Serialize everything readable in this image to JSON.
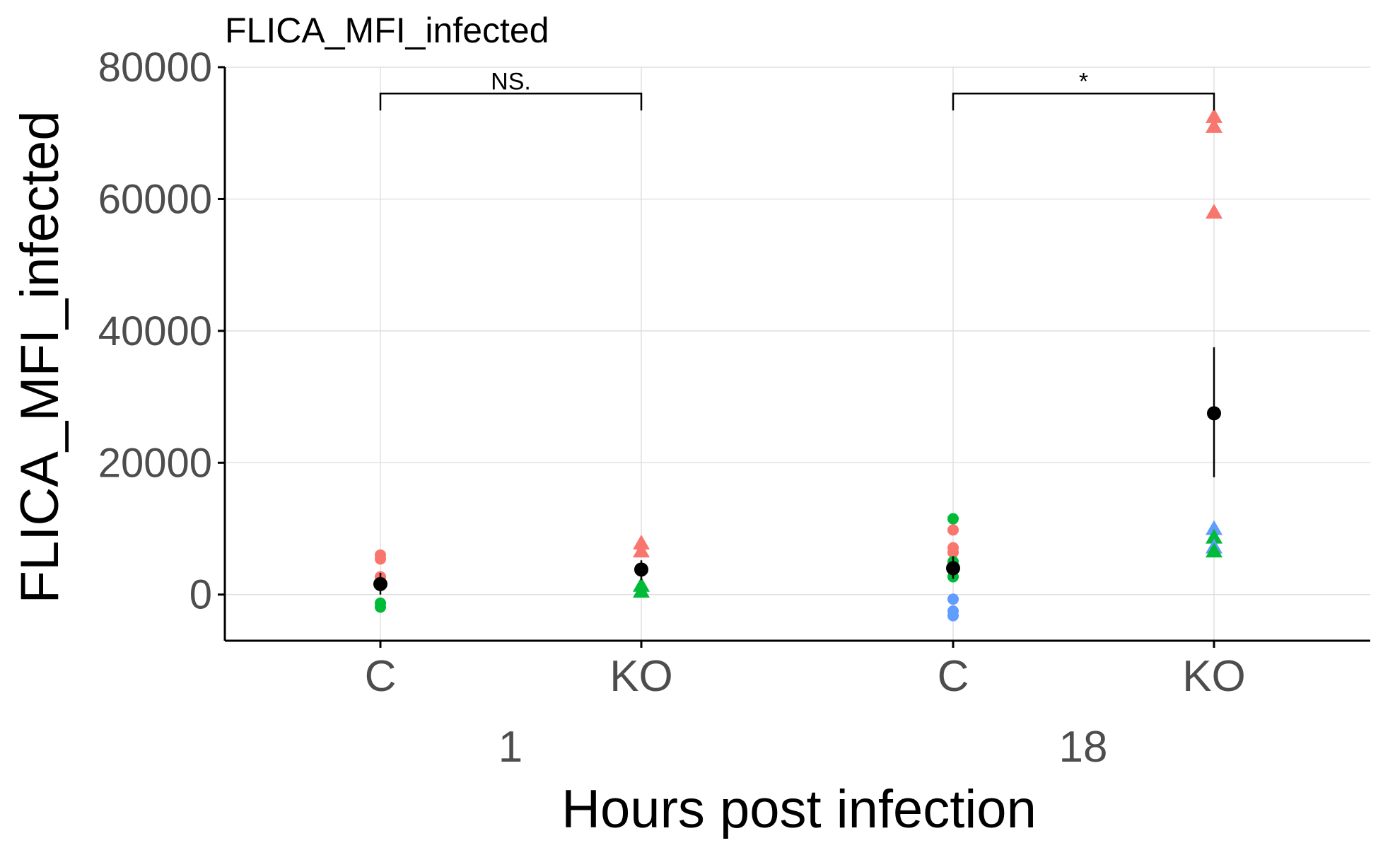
{
  "chart_data": {
    "type": "scatter",
    "title": "FLICA_MFI_infected",
    "xlabel": "Hours post infection",
    "ylabel": "FLICA_MFI_infected",
    "ylim": [
      -7000,
      80000
    ],
    "yticks": [
      "0",
      "20000",
      "40000",
      "60000",
      "80000"
    ],
    "ytick_values": [
      0,
      20000,
      40000,
      60000,
      80000
    ],
    "grid": true,
    "legend": "none",
    "groups": [
      {
        "label": "1",
        "categories": [
          "C",
          "KO"
        ]
      },
      {
        "label": "18",
        "categories": [
          "C",
          "KO"
        ]
      }
    ],
    "colors": {
      "red": "#F8766D",
      "green": "#00BA38",
      "blue": "#619CFF",
      "mean": "#000000"
    },
    "points": [
      {
        "group": "1",
        "category": "C",
        "shape": "circle",
        "color": "red",
        "y": 6000
      },
      {
        "group": "1",
        "category": "C",
        "shape": "circle",
        "color": "red",
        "y": 5400
      },
      {
        "group": "1",
        "category": "C",
        "shape": "circle",
        "color": "red",
        "y": 2700
      },
      {
        "group": "1",
        "category": "C",
        "shape": "circle",
        "color": "green",
        "y": -1300
      },
      {
        "group": "1",
        "category": "C",
        "shape": "circle",
        "color": "green",
        "y": -1900
      },
      {
        "group": "1",
        "category": "KO",
        "shape": "triangle",
        "color": "red",
        "y": 7800
      },
      {
        "group": "1",
        "category": "KO",
        "shape": "triangle",
        "color": "red",
        "y": 6600
      },
      {
        "group": "1",
        "category": "KO",
        "shape": "triangle",
        "color": "green",
        "y": 1400
      },
      {
        "group": "1",
        "category": "KO",
        "shape": "triangle",
        "color": "green",
        "y": 500
      },
      {
        "group": "18",
        "category": "C",
        "shape": "circle",
        "color": "green",
        "y": 11500
      },
      {
        "group": "18",
        "category": "C",
        "shape": "circle",
        "color": "red",
        "y": 9800
      },
      {
        "group": "18",
        "category": "C",
        "shape": "circle",
        "color": "red",
        "y": 7100
      },
      {
        "group": "18",
        "category": "C",
        "shape": "circle",
        "color": "red",
        "y": 6400
      },
      {
        "group": "18",
        "category": "C",
        "shape": "circle",
        "color": "green",
        "y": 5000
      },
      {
        "group": "18",
        "category": "C",
        "shape": "circle",
        "color": "green",
        "y": 2700
      },
      {
        "group": "18",
        "category": "C",
        "shape": "circle",
        "color": "blue",
        "y": -700
      },
      {
        "group": "18",
        "category": "C",
        "shape": "circle",
        "color": "blue",
        "y": -2500
      },
      {
        "group": "18",
        "category": "C",
        "shape": "circle",
        "color": "blue",
        "y": -3200
      },
      {
        "group": "18",
        "category": "KO",
        "shape": "triangle",
        "color": "red",
        "y": 72500
      },
      {
        "group": "18",
        "category": "KO",
        "shape": "triangle",
        "color": "red",
        "y": 71000
      },
      {
        "group": "18",
        "category": "KO",
        "shape": "triangle",
        "color": "red",
        "y": 58000
      },
      {
        "group": "18",
        "category": "KO",
        "shape": "triangle",
        "color": "blue",
        "y": 10000
      },
      {
        "group": "18",
        "category": "KO",
        "shape": "triangle",
        "color": "green",
        "y": 8700
      },
      {
        "group": "18",
        "category": "KO",
        "shape": "triangle",
        "color": "blue",
        "y": 7200
      },
      {
        "group": "18",
        "category": "KO",
        "shape": "triangle",
        "color": "green",
        "y": 6600
      }
    ],
    "means": [
      {
        "group": "1",
        "category": "C",
        "mean": 1600,
        "lower": 0,
        "upper": 3300
      },
      {
        "group": "1",
        "category": "KO",
        "mean": 3800,
        "lower": 2200,
        "upper": 5200
      },
      {
        "group": "18",
        "category": "C",
        "mean": 4000,
        "lower": 2400,
        "upper": 5800
      },
      {
        "group": "18",
        "category": "KO",
        "mean": 27500,
        "lower": 17800,
        "upper": 37500
      }
    ],
    "annotations": [
      {
        "group": "1",
        "from": "C",
        "to": "KO",
        "label": "NS.",
        "y": 76000
      },
      {
        "group": "18",
        "from": "C",
        "to": "KO",
        "label": "*",
        "y": 76000
      }
    ]
  }
}
